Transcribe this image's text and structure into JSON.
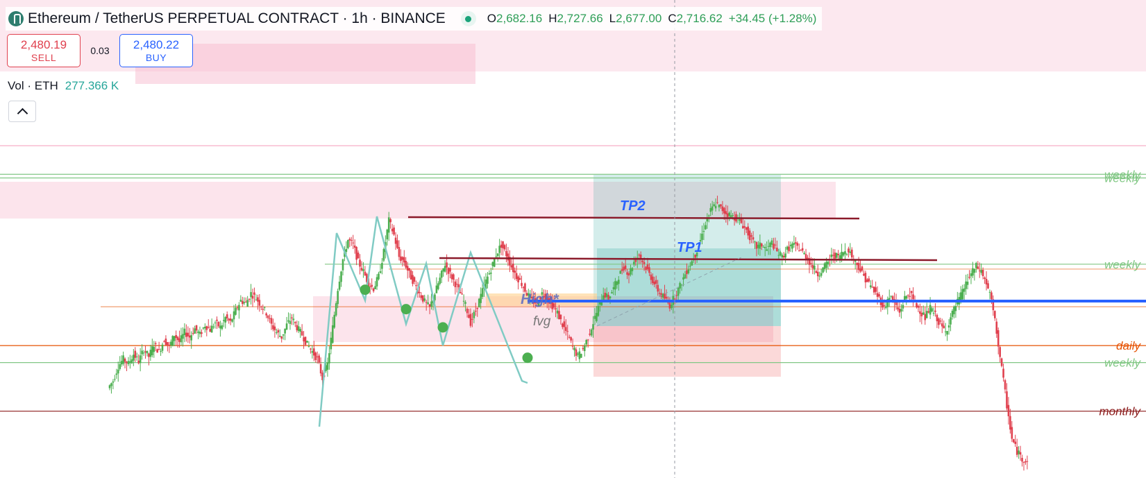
{
  "header": {
    "title": "Ethereum / TetherUS PERPETUAL CONTRACT · 1h · BINANCE",
    "ohlc": {
      "o_label": "O",
      "o": "2,682.16",
      "h_label": "H",
      "h": "2,727.66",
      "l_label": "L",
      "l": "2,677.00",
      "c_label": "C",
      "c": "2,716.62",
      "change": "+34.45 (+1.28%)"
    }
  },
  "trade": {
    "sell_price": "2,480.19",
    "sell_label": "SELL",
    "spread": "0.03",
    "buy_price": "2,480.22",
    "buy_label": "BUY"
  },
  "volume": {
    "label": "Vol · ETH",
    "value": "277.366 K"
  },
  "colors": {
    "up": "#4caf50",
    "down": "#e0404e",
    "weekly": "#81c784",
    "daily": "#e65100",
    "monthly": "#8b1a1a",
    "tp_line": "#8b1a2a",
    "high_line": "#2962ff",
    "zone": "#f8bbd0",
    "tp_zone": "#26a69a",
    "stop_zone": "#ef5350"
  },
  "chart_data": {
    "type": "candlestick",
    "symbol": "ETHUSDT.P",
    "timeframe": "1h",
    "levels": [
      {
        "label": "weekly",
        "price": 2730,
        "color": "#81c784"
      },
      {
        "label": "weekly",
        "price": 2727,
        "color": "#81c784"
      },
      {
        "label": "weekly",
        "price": 2656,
        "color": "#81c784"
      },
      {
        "label": "daily",
        "price": 2589,
        "color": "#e65100"
      },
      {
        "label": "weekly",
        "price": 2575,
        "color": "#81c784"
      },
      {
        "label": "monthly",
        "price": 2535,
        "color": "#8b1a1a"
      }
    ],
    "annotations": [
      {
        "label": "TP2",
        "price": 2698
      },
      {
        "label": "TP1",
        "price": 2669
      },
      {
        "label": "High*",
        "price": 2634
      },
      {
        "label": "fvg",
        "price": 2618
      }
    ],
    "pivots": [
      2635,
      2619,
      2604,
      2579
    ],
    "close_series": [
      2560,
      2572,
      2578,
      2574,
      2582,
      2576,
      2586,
      2580,
      2590,
      2584,
      2594,
      2588,
      2598,
      2592,
      2600,
      2596,
      2603,
      2598,
      2606,
      2602,
      2608,
      2604,
      2612,
      2608,
      2618,
      2626,
      2624,
      2632,
      2628,
      2622,
      2616,
      2606,
      2600,
      2596,
      2606,
      2612,
      2604,
      2598,
      2590,
      2584,
      2578,
      2562,
      2574,
      2604,
      2636,
      2660,
      2676,
      2672,
      2658,
      2650,
      2640,
      2636,
      2646,
      2666,
      2692,
      2680,
      2662,
      2658,
      2648,
      2640,
      2632,
      2625,
      2620,
      2632,
      2644,
      2656,
      2648,
      2640,
      2632,
      2622,
      2608,
      2618,
      2630,
      2642,
      2652,
      2664,
      2672,
      2664,
      2654,
      2646,
      2640,
      2632,
      2626,
      2624,
      2632,
      2628,
      2622,
      2616,
      2606,
      2598,
      2588,
      2580,
      2586,
      2596,
      2608,
      2620,
      2632,
      2628,
      2636,
      2646,
      2654,
      2648,
      2658,
      2664,
      2656,
      2648,
      2640,
      2632,
      2628,
      2622,
      2630,
      2638,
      2648,
      2656,
      2664,
      2676,
      2690,
      2700,
      2706,
      2702,
      2698,
      2696,
      2694,
      2690,
      2684,
      2676,
      2670,
      2672,
      2668,
      2674,
      2666,
      2662,
      2668,
      2672,
      2670,
      2666,
      2660,
      2654,
      2648,
      2652,
      2658,
      2664,
      2662,
      2666,
      2668,
      2660,
      2654,
      2646,
      2640,
      2634,
      2628,
      2620,
      2630,
      2624,
      2616,
      2628,
      2632,
      2624,
      2618,
      2612,
      2620,
      2614,
      2606,
      2600,
      2612,
      2622,
      2630,
      2640,
      2648,
      2654,
      2650,
      2640,
      2626,
      2600,
      2570,
      2540,
      2512,
      2502,
      2496,
      2494
    ]
  }
}
